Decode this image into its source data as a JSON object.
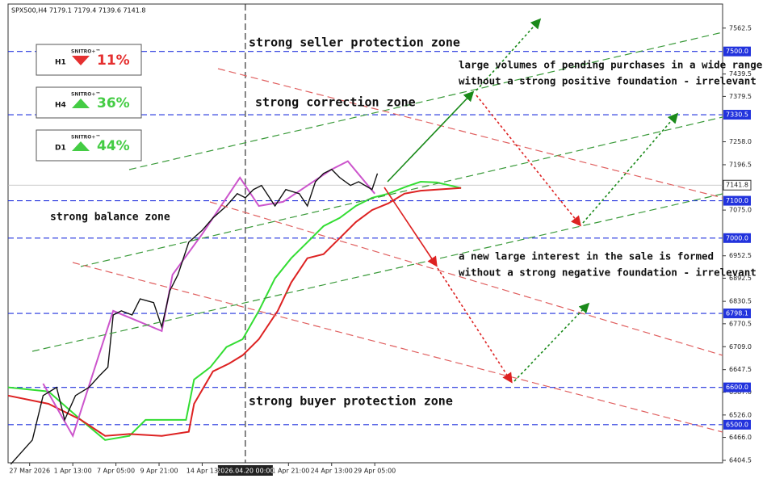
{
  "chart_data": {
    "type": "line",
    "title": "SPX500,H4  7179.1 7179.4 7139.6 7141.8",
    "xlim": [
      0,
      265
    ],
    "ylim": [
      6398,
      7627
    ],
    "xticks": [
      {
        "value": 8,
        "label": "27 Mar 2026"
      },
      {
        "value": 24,
        "label": "1 Apr 13:00"
      },
      {
        "value": 40,
        "label": "7 Apr 05:00"
      },
      {
        "value": 56,
        "label": "9 Apr 21:00"
      },
      {
        "value": 72,
        "label": "14 Apr 13"
      },
      {
        "value": 104,
        "label": "21 Apr 21:00"
      },
      {
        "value": 120,
        "label": "24 Apr 13:00"
      },
      {
        "value": 136,
        "label": "29 Apr 05:00"
      }
    ],
    "cursor": {
      "value": 88,
      "label": "2026.04.20 00:00"
    },
    "yticks": [
      7562.5,
      7439.5,
      7379.5,
      {
        "value": 7258,
        "label": "7258.0"
      },
      7196.5,
      {
        "value": 7075,
        "label": "7075.0"
      },
      6952.5,
      6892.5,
      6830.5,
      6770.5,
      {
        "value": 6709,
        "label": "6709.0"
      },
      6647.5,
      {
        "value": 6587,
        "label": "6587.0"
      },
      {
        "value": 6526,
        "label": "6526.0"
      },
      {
        "value": 6466,
        "label": "6466.0"
      },
      6404.5
    ],
    "levels": [
      {
        "value": 7500,
        "label": "7500.0"
      },
      {
        "value": 7330.5,
        "label": "7330.5"
      },
      {
        "value": 7100,
        "label": "7100.0"
      },
      {
        "value": 7000,
        "label": "7000.0"
      },
      6798.1,
      {
        "value": 6600,
        "label": "6600.0"
      },
      {
        "value": 6500,
        "label": "6500.0"
      }
    ],
    "level_color": "#2233dd",
    "current_price": 7141.8,
    "series": [
      {
        "color": "#33dd33",
        "x": [
          0,
          15,
          27,
          36,
          45,
          51,
          66,
          69,
          75,
          81,
          87,
          93,
          99,
          105,
          111,
          117,
          123,
          129,
          135,
          141,
          147,
          153,
          159,
          168
        ],
        "values": [
          6600,
          6589,
          6513,
          6459,
          6470,
          6513,
          6513,
          6621,
          6654,
          6708,
          6729,
          6805,
          6892,
          6946,
          6989,
          7032,
          7054,
          7086,
          7108,
          7119,
          7136,
          7151,
          7149,
          7134
        ]
      },
      {
        "color": "#dd2222",
        "x": [
          0,
          15,
          27,
          36,
          45,
          57,
          67,
          69,
          76,
          82,
          87,
          93,
          100,
          105,
          111,
          117,
          123,
          129,
          135,
          141,
          147,
          153,
          159,
          168
        ],
        "values": [
          6578,
          6556,
          6513,
          6470,
          6475,
          6470,
          6481,
          6556,
          6643,
          6664,
          6686,
          6729,
          6805,
          6881,
          6946,
          6957,
          7000,
          7043,
          7075,
          7093,
          7119,
          7127,
          7130,
          7134
        ]
      },
      {
        "color": "#cc55cc",
        "x": [
          13,
          24,
          39,
          46,
          57,
          61,
          72,
          86,
          93,
          102,
          120,
          126,
          136
        ],
        "values": [
          6610,
          6470,
          6805,
          6784,
          6751,
          6902,
          7011,
          7162,
          7086,
          7097,
          7184,
          7206,
          7119
        ]
      },
      {
        "color": "#111111",
        "x": [
          1,
          9,
          13,
          18,
          21,
          25,
          30,
          34,
          37,
          39,
          42,
          46,
          49,
          54,
          57,
          60,
          63,
          67,
          72,
          76,
          81,
          85,
          88,
          91,
          94,
          99,
          103,
          108,
          111,
          114,
          117,
          120,
          123,
          127,
          130,
          135,
          137
        ],
        "values": [
          6394,
          6459,
          6578,
          6600,
          6513,
          6578,
          6600,
          6632,
          6654,
          6794,
          6805,
          6794,
          6837,
          6827,
          6762,
          6859,
          6902,
          6989,
          7021,
          7054,
          7086,
          7119,
          7108,
          7130,
          7141,
          7086,
          7130,
          7119,
          7086,
          7151,
          7173,
          7184,
          7162,
          7141,
          7151,
          7130,
          7173
        ]
      }
    ]
  },
  "annotations": [
    "strong seller protection zone",
    "strong correction zone",
    "strong balance zone",
    "strong buyer protection zone",
    "large volumes of pending purchases in a wide range",
    "without a strong positive foundation - irrelevant",
    "a new large interest in the sale is formed",
    "without a strong negative foundation - irrelevant"
  ],
  "widgets": [
    {
      "timeframe": "H1",
      "brand": "SNITRO+™",
      "value": "11%"
    },
    {
      "timeframe": "H4",
      "brand": "SNITRO+™",
      "value": "36%"
    },
    {
      "timeframe": "D1",
      "brand": "SNITRO+™",
      "value": "44%"
    }
  ]
}
